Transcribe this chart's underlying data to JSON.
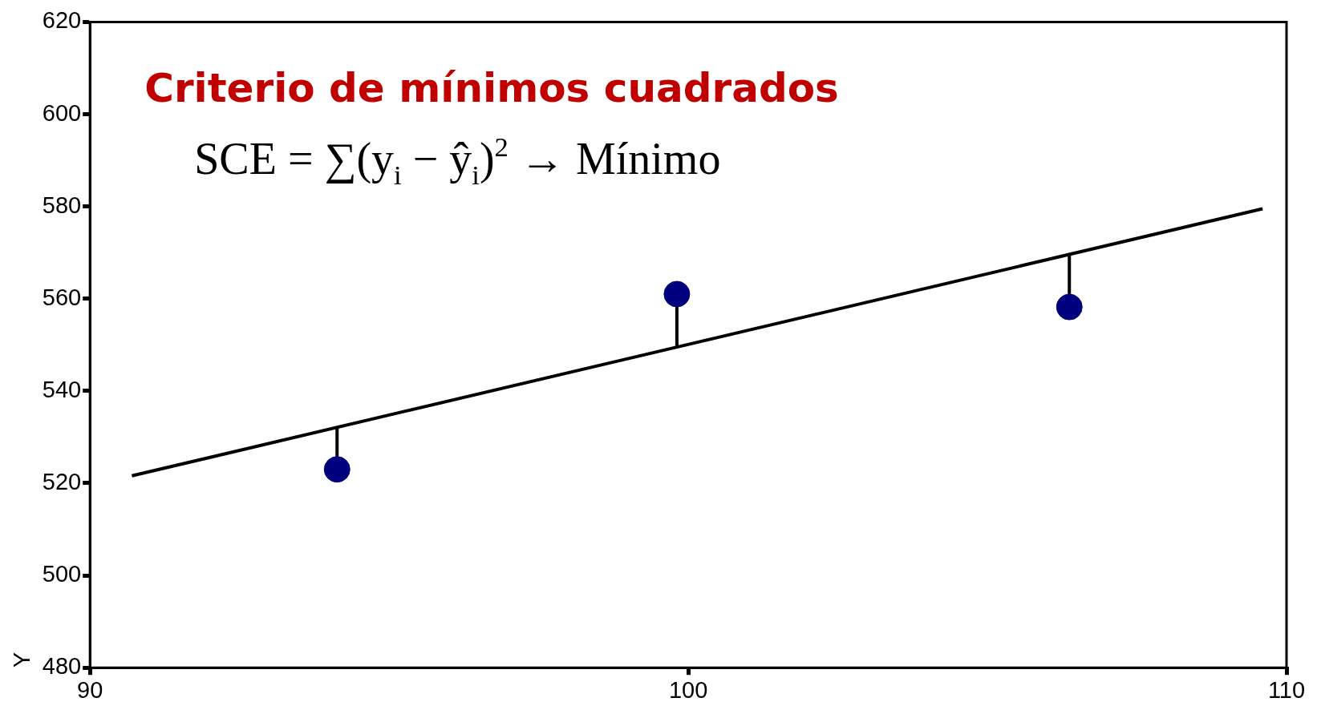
{
  "chart_data": {
    "type": "scatter",
    "title": "Criterio de mínimos cuadrados",
    "annotations": [
      "SCE = ∑(y$_{i}$ − ŷ$_{i}$)$^{2}$ → Mínimo"
    ],
    "ylabel": "Y",
    "xlim": [
      90,
      110
    ],
    "ylim": [
      480,
      620
    ],
    "xticks": [
      90,
      100,
      110
    ],
    "yticks": [
      480,
      500,
      520,
      540,
      560,
      580,
      600,
      620
    ],
    "grid": false,
    "legend": false,
    "series": [
      {
        "type": "scatter",
        "color": "#00007f",
        "marker": "circle",
        "x": [
          94.13,
          99.81,
          106.37
        ],
        "values": [
          523,
          561,
          558.2
        ],
        "errors": [
          [
            523,
            532.1
          ],
          [
            549.6,
            561
          ],
          [
            558.2,
            569.7
          ]
        ]
      },
      {
        "type": "line",
        "color": "#000000",
        "marker": "none",
        "x": [
          90.7,
          109.6
        ],
        "values": [
          521.6,
          579.5
        ]
      }
    ]
  }
}
